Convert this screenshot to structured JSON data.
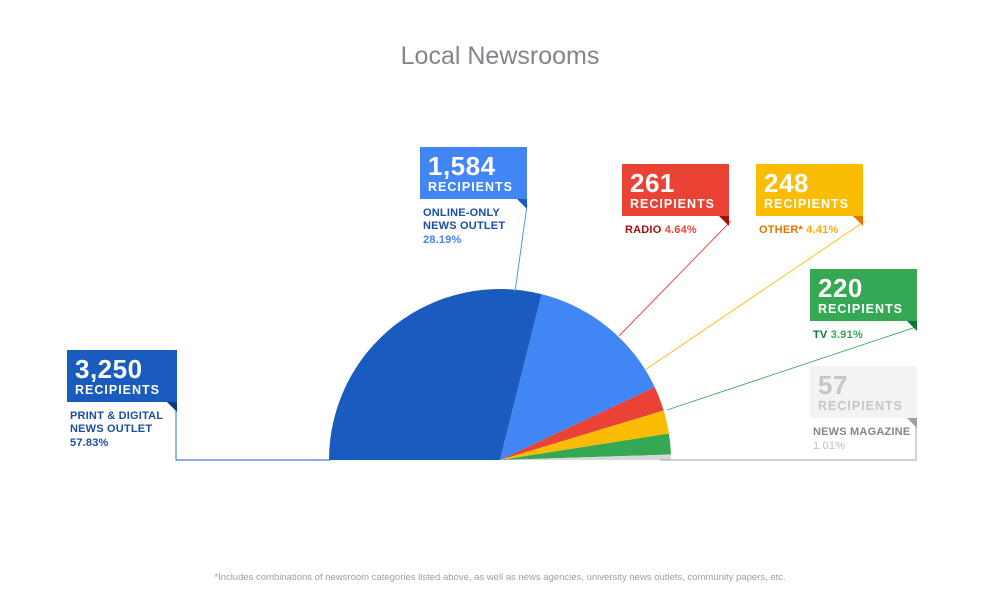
{
  "title": "Local Newsrooms",
  "footnote": "*Includes combinations of newsroom categories listed above, as well as news agencies, university news outlets, community papers, etc.",
  "colors": {
    "print": "#1a5bbf",
    "online": "#4285f4",
    "radio": "#ea4335",
    "other": "#fbbc04",
    "tv": "#34a853",
    "magazine": "#d6d7d9"
  },
  "chart_data": {
    "type": "pie",
    "variant": "half-donut-semicircle",
    "title": "Local Newsrooms",
    "unit_label": "RECIPIENTS",
    "slices": [
      {
        "key": "print",
        "count": "3,250",
        "unit": "RECIPIENTS",
        "label": "PRINT & DIGITAL NEWS OUTLET",
        "label_lines": [
          "PRINT & DIGITAL",
          "NEWS OUTLET"
        ],
        "value": 3250,
        "percent": 57.83,
        "percent_label": "57.83%",
        "color": "#1a5bbf"
      },
      {
        "key": "online",
        "count": "1,584",
        "unit": "RECIPIENTS",
        "label": "ONLINE-ONLY NEWS OUTLET",
        "label_lines": [
          "ONLINE-ONLY",
          "NEWS OUTLET"
        ],
        "value": 1584,
        "percent": 28.19,
        "percent_label": "28.19%",
        "color": "#4285f4"
      },
      {
        "key": "radio",
        "count": "261",
        "unit": "RECIPIENTS",
        "label": "RADIO",
        "value": 261,
        "percent": 4.64,
        "percent_label": "4.64%",
        "color": "#ea4335"
      },
      {
        "key": "other",
        "count": "248",
        "unit": "RECIPIENTS",
        "label": "OTHER*",
        "value": 248,
        "percent": 4.41,
        "percent_label": "4.41%",
        "color": "#fbbc04"
      },
      {
        "key": "tv",
        "count": "220",
        "unit": "RECIPIENTS",
        "label": "TV",
        "value": 220,
        "percent": 3.91,
        "percent_label": "3.91%",
        "color": "#34a853"
      },
      {
        "key": "magazine",
        "count": "57",
        "unit": "RECIPIENTS",
        "label": "NEWS MAGAZINE",
        "value": 57,
        "percent": 1.01,
        "percent_label": "1.01%",
        "color": "#d6d7d9"
      }
    ]
  }
}
